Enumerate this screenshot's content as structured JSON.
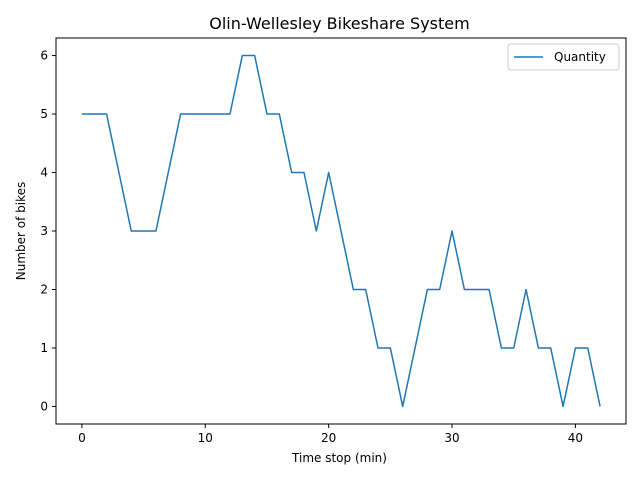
{
  "chart_data": {
    "type": "line",
    "title": "Olin-Wellesley Bikeshare System",
    "xlabel": "Time stop (min)",
    "ylabel": "Number of bikes",
    "xlim": [
      -2.1,
      44.1
    ],
    "ylim": [
      -0.3,
      6.3
    ],
    "xticks": [
      0,
      10,
      20,
      30,
      40
    ],
    "yticks": [
      0,
      1,
      2,
      3,
      4,
      5,
      6
    ],
    "grid": false,
    "legend": "top-right",
    "series": [
      {
        "name": "Quantity",
        "color": "#1f77b4",
        "x": [
          0,
          1,
          2,
          3,
          4,
          5,
          6,
          7,
          8,
          9,
          10,
          11,
          12,
          13,
          14,
          15,
          16,
          17,
          18,
          19,
          20,
          21,
          22,
          23,
          24,
          25,
          26,
          27,
          28,
          29,
          30,
          31,
          32,
          33,
          34,
          35,
          36,
          37,
          38,
          39,
          40,
          41,
          42
        ],
        "y": [
          5,
          5,
          5,
          4,
          3,
          3,
          3,
          4,
          5,
          5,
          5,
          5,
          5,
          6,
          6,
          5,
          5,
          4,
          4,
          3,
          4,
          3,
          2,
          2,
          1,
          1,
          0,
          1,
          2,
          2,
          3,
          2,
          2,
          2,
          1,
          1,
          2,
          1,
          1,
          0,
          1,
          1,
          0
        ]
      }
    ]
  }
}
